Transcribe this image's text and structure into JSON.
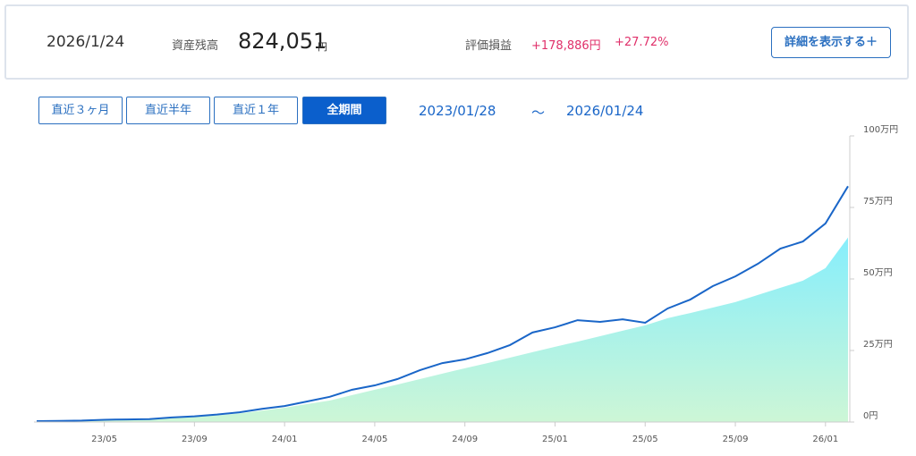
{
  "header": {
    "date": "2026/1/24",
    "balance_label": "資産残高",
    "balance": "824,051",
    "balance_unit": "円",
    "pl_label": "評価損益",
    "pl_amount": "+178,886円",
    "pl_percent": "+27.72%",
    "detail_button": "詳細を表示する＋"
  },
  "period_buttons": [
    "直近３ヶ月",
    "直近半年",
    "直近１年",
    "全期間"
  ],
  "range": {
    "start": "2023/01/28",
    "separator": "～",
    "end": "2026/01/24"
  },
  "chart_data": {
    "type": "line-area",
    "categories": [
      null,
      null,
      null,
      "23/05",
      null,
      null,
      null,
      "23/09",
      null,
      null,
      null,
      "24/01",
      null,
      null,
      null,
      "24/05",
      null,
      null,
      null,
      "24/09",
      null,
      null,
      null,
      "25/01",
      null,
      null,
      null,
      "25/05",
      null,
      null,
      null,
      "25/09",
      null,
      null,
      null,
      "26/01",
      null
    ],
    "series": [
      {
        "color": "#8aeefa",
        "values": [
          0.2,
          0.3,
          0.4,
          0.6,
          0.7,
          0.8,
          1.4,
          1.8,
          2.3,
          3.0,
          4.0,
          5.0,
          6.3,
          7.5,
          9.4,
          11.3,
          13.1,
          15.0,
          16.9,
          18.8,
          20.6,
          22.5,
          24.4,
          26.3,
          28.1,
          30.0,
          31.9,
          33.8,
          36.3,
          38.1,
          40.0,
          41.9,
          44.4,
          46.9,
          49.4,
          53.8,
          64.5
        ]
      },
      {
        "color": "#1a66c8",
        "values": [
          0.3,
          0.4,
          0.5,
          0.8,
          0.9,
          1.0,
          1.6,
          2.0,
          2.6,
          3.4,
          4.6,
          5.6,
          7.2,
          8.8,
          11.3,
          12.8,
          15.0,
          18.1,
          20.6,
          21.9,
          24.1,
          26.9,
          31.3,
          33.1,
          35.6,
          35.0,
          35.9,
          34.7,
          39.7,
          42.8,
          47.5,
          50.9,
          55.3,
          60.6,
          63.1,
          69.4,
          82.4
        ]
      }
    ],
    "ylim": [
      0,
      100
    ],
    "yticks": [
      {
        "value": 0,
        "label": "0円"
      },
      {
        "value": 25,
        "label": "25万円"
      },
      {
        "value": 50,
        "label": "50万円"
      },
      {
        "value": 75,
        "label": "75万円"
      },
      {
        "value": 100,
        "label": "100万円"
      }
    ]
  }
}
